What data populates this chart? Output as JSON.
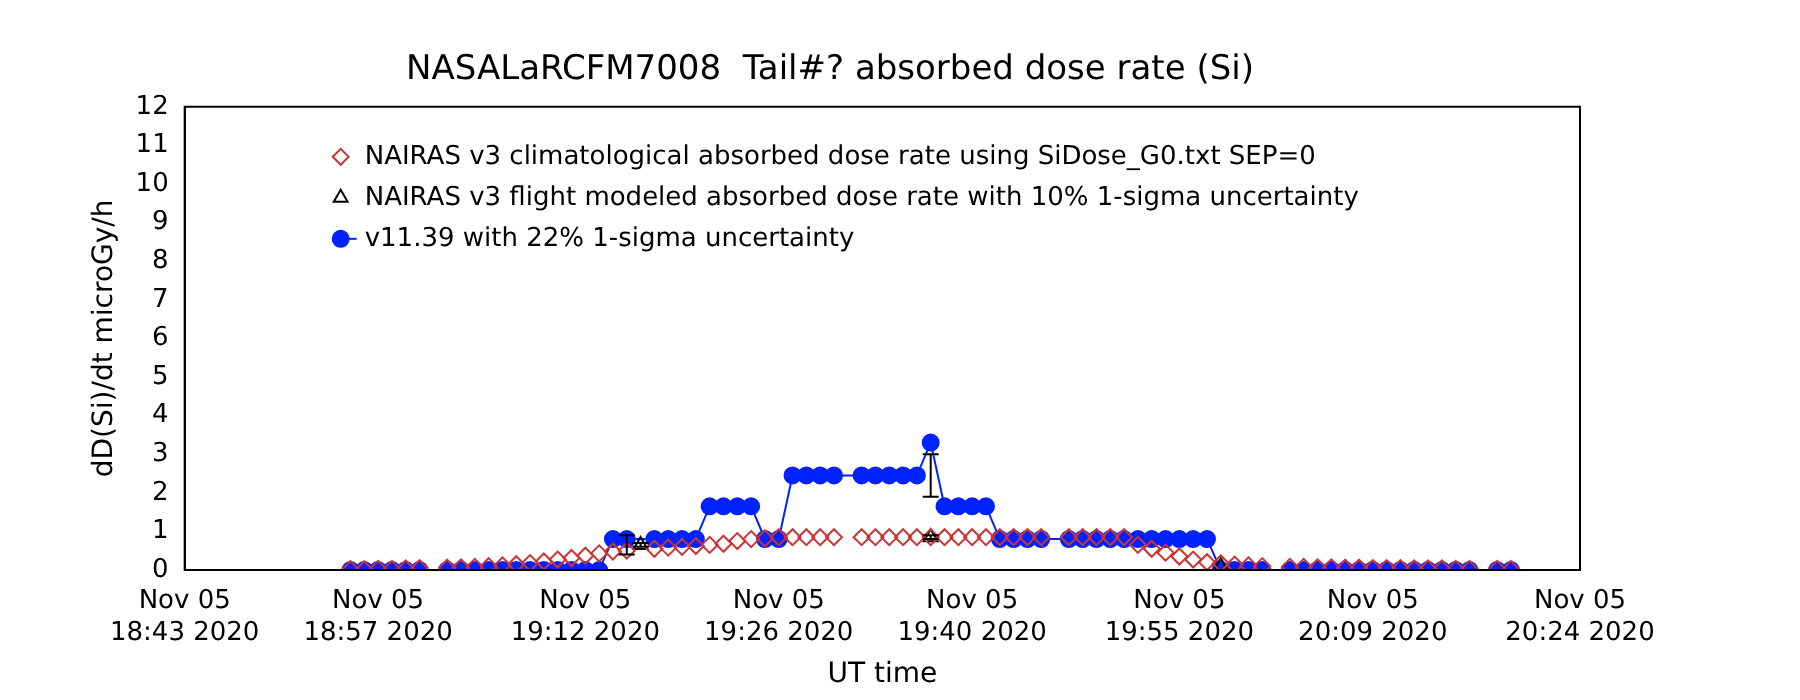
{
  "chart_data": {
    "type": "line",
    "title": "NASALaRCFM7008  Tail#? absorbed dose rate (Si)",
    "xlabel": "UT time",
    "ylabel": "dD(Si)/dt microGy/h",
    "x": [
      "2020-11-05T18:55",
      "2020-11-05T18:56",
      "2020-11-05T18:57",
      "2020-11-05T18:58",
      "2020-11-05T18:59",
      "2020-11-05T19:00",
      "2020-11-05T19:02",
      "2020-11-05T19:03",
      "2020-11-05T19:04",
      "2020-11-05T19:05",
      "2020-11-05T19:06",
      "2020-11-05T19:07",
      "2020-11-05T19:08",
      "2020-11-05T19:09",
      "2020-11-05T19:10",
      "2020-11-05T19:11",
      "2020-11-05T19:12",
      "2020-11-05T19:13",
      "2020-11-05T19:14",
      "2020-11-05T19:15",
      "2020-11-05T19:17",
      "2020-11-05T19:18",
      "2020-11-05T19:19",
      "2020-11-05T19:20",
      "2020-11-05T19:21",
      "2020-11-05T19:22",
      "2020-11-05T19:23",
      "2020-11-05T19:24",
      "2020-11-05T19:25",
      "2020-11-05T19:26",
      "2020-11-05T19:27",
      "2020-11-05T19:28",
      "2020-11-05T19:29",
      "2020-11-05T19:30",
      "2020-11-05T19:32",
      "2020-11-05T19:33",
      "2020-11-05T19:34",
      "2020-11-05T19:35",
      "2020-11-05T19:36",
      "2020-11-05T19:37",
      "2020-11-05T19:38",
      "2020-11-05T19:39",
      "2020-11-05T19:40",
      "2020-11-05T19:41",
      "2020-11-05T19:42",
      "2020-11-05T19:43",
      "2020-11-05T19:44",
      "2020-11-05T19:45",
      "2020-11-05T19:47",
      "2020-11-05T19:48",
      "2020-11-05T19:49",
      "2020-11-05T19:50",
      "2020-11-05T19:51",
      "2020-11-05T19:52",
      "2020-11-05T19:53",
      "2020-11-05T19:54",
      "2020-11-05T19:55",
      "2020-11-05T19:56",
      "2020-11-05T19:57",
      "2020-11-05T19:58",
      "2020-11-05T19:59",
      "2020-11-05T20:00",
      "2020-11-05T20:01",
      "2020-11-05T20:03",
      "2020-11-05T20:04",
      "2020-11-05T20:05",
      "2020-11-05T20:06",
      "2020-11-05T20:07",
      "2020-11-05T20:08",
      "2020-11-05T20:09",
      "2020-11-05T20:10",
      "2020-11-05T20:11",
      "2020-11-05T20:12",
      "2020-11-05T20:13",
      "2020-11-05T20:14",
      "2020-11-05T20:15",
      "2020-11-05T20:16",
      "2020-11-05T20:18",
      "2020-11-05T20:19"
    ],
    "series": [
      {
        "name": "NAIRAS v3 climatological absorbed dose rate using SiDose_G0.txt SEP=0",
        "type": "scatter",
        "marker": "diamond",
        "color": "#cc3333",
        "values": [
          0.02,
          0.02,
          0.03,
          0.03,
          0.04,
          0.05,
          0.06,
          0.07,
          0.08,
          0.1,
          0.12,
          0.15,
          0.18,
          0.22,
          0.27,
          0.31,
          0.37,
          0.43,
          0.48,
          0.5,
          0.55,
          0.58,
          0.6,
          0.62,
          0.65,
          0.68,
          0.75,
          0.8,
          0.82,
          0.85,
          0.85,
          0.85,
          0.85,
          0.85,
          0.85,
          0.85,
          0.85,
          0.85,
          0.85,
          0.85,
          0.85,
          0.85,
          0.85,
          0.85,
          0.85,
          0.85,
          0.85,
          0.85,
          0.85,
          0.85,
          0.85,
          0.85,
          0.85,
          0.65,
          0.55,
          0.45,
          0.35,
          0.27,
          0.2,
          0.17,
          0.14,
          0.12,
          0.1,
          0.08,
          0.08,
          0.07,
          0.07,
          0.06,
          0.06,
          0.05,
          0.05,
          0.05,
          0.04,
          0.04,
          0.04,
          0.03,
          0.03,
          0.03,
          0.03
        ]
      },
      {
        "name": "NAIRAS v3 flight modeled absorbed dose rate with 10% 1-sigma uncertainty",
        "type": "scatter",
        "marker": "triangle",
        "color": "#000000",
        "x": [
          "2020-11-05T19:16",
          "2020-11-05T19:37",
          "2020-11-05T19:58"
        ],
        "values": [
          0.65,
          0.85,
          0.1
        ],
        "errors": [
          [
            0.6,
            0.7
          ],
          [
            0.8,
            0.9
          ],
          null
        ]
      },
      {
        "name": "v11.39 with 22% 1-sigma uncertainty",
        "marker": "circle",
        "color": "#0022ff",
        "values": [
          0,
          0,
          0,
          0,
          0,
          0,
          0,
          0,
          0,
          0,
          0,
          0,
          0,
          0,
          0,
          0,
          0,
          0,
          0.8,
          0.8,
          0.8,
          0.8,
          0.8,
          0.8,
          1.65,
          1.65,
          1.65,
          1.65,
          0.8,
          0.8,
          2.45,
          2.45,
          2.45,
          2.45,
          2.45,
          2.45,
          2.45,
          2.45,
          2.45,
          3.3,
          1.65,
          1.65,
          1.65,
          1.65,
          0.8,
          0.8,
          0.8,
          0.8,
          0.8,
          0.8,
          0.8,
          0.8,
          0.8,
          0.8,
          0.8,
          0.8,
          0.8,
          0.8,
          0.8,
          0,
          0,
          0,
          0,
          0,
          0,
          0,
          0,
          0,
          0,
          0,
          0,
          0,
          0,
          0,
          0,
          0,
          0,
          0,
          0
        ],
        "errors": [
          null,
          null,
          null,
          null,
          null,
          null,
          null,
          null,
          null,
          null,
          null,
          null,
          null,
          null,
          null,
          null,
          null,
          null,
          null,
          [
            0.4,
            0.9
          ],
          null,
          null,
          null,
          null,
          null,
          null,
          null,
          null,
          null,
          null,
          null,
          null,
          null,
          null,
          null,
          null,
          null,
          null,
          null,
          [
            1.9,
            3.0
          ],
          null,
          null,
          null,
          null,
          null,
          null,
          null,
          null,
          null,
          null,
          null,
          null,
          null,
          null,
          null,
          null,
          null,
          null,
          null,
          null,
          null,
          null,
          null,
          null,
          null,
          null,
          null,
          null,
          null,
          null,
          null,
          null,
          null,
          null,
          null,
          null,
          null,
          null,
          null
        ]
      }
    ],
    "xlim": [
      "2020-11-05T18:43",
      "2020-11-05T20:24"
    ],
    "xticks": [
      {
        "value": "2020-11-05T18:43",
        "label": "Nov 05\n18:43 2020"
      },
      {
        "value": "2020-11-05T18:57",
        "label": "Nov 05\n18:57 2020"
      },
      {
        "value": "2020-11-05T19:12",
        "label": "Nov 05\n19:12 2020"
      },
      {
        "value": "2020-11-05T19:26",
        "label": "Nov 05\n19:26 2020"
      },
      {
        "value": "2020-11-05T19:40",
        "label": "Nov 05\n19:40 2020"
      },
      {
        "value": "2020-11-05T19:55",
        "label": "Nov 05\n19:55 2020"
      },
      {
        "value": "2020-11-05T20:09",
        "label": "Nov 05\n20:09 2020"
      },
      {
        "value": "2020-11-05T20:24",
        "label": "Nov 05\n20:24 2020"
      }
    ],
    "ylim": [
      0,
      12
    ],
    "yticks": [
      0,
      1,
      2,
      3,
      4,
      5,
      6,
      7,
      8,
      9,
      10,
      11,
      12
    ],
    "grid": false,
    "legend": "top left"
  }
}
